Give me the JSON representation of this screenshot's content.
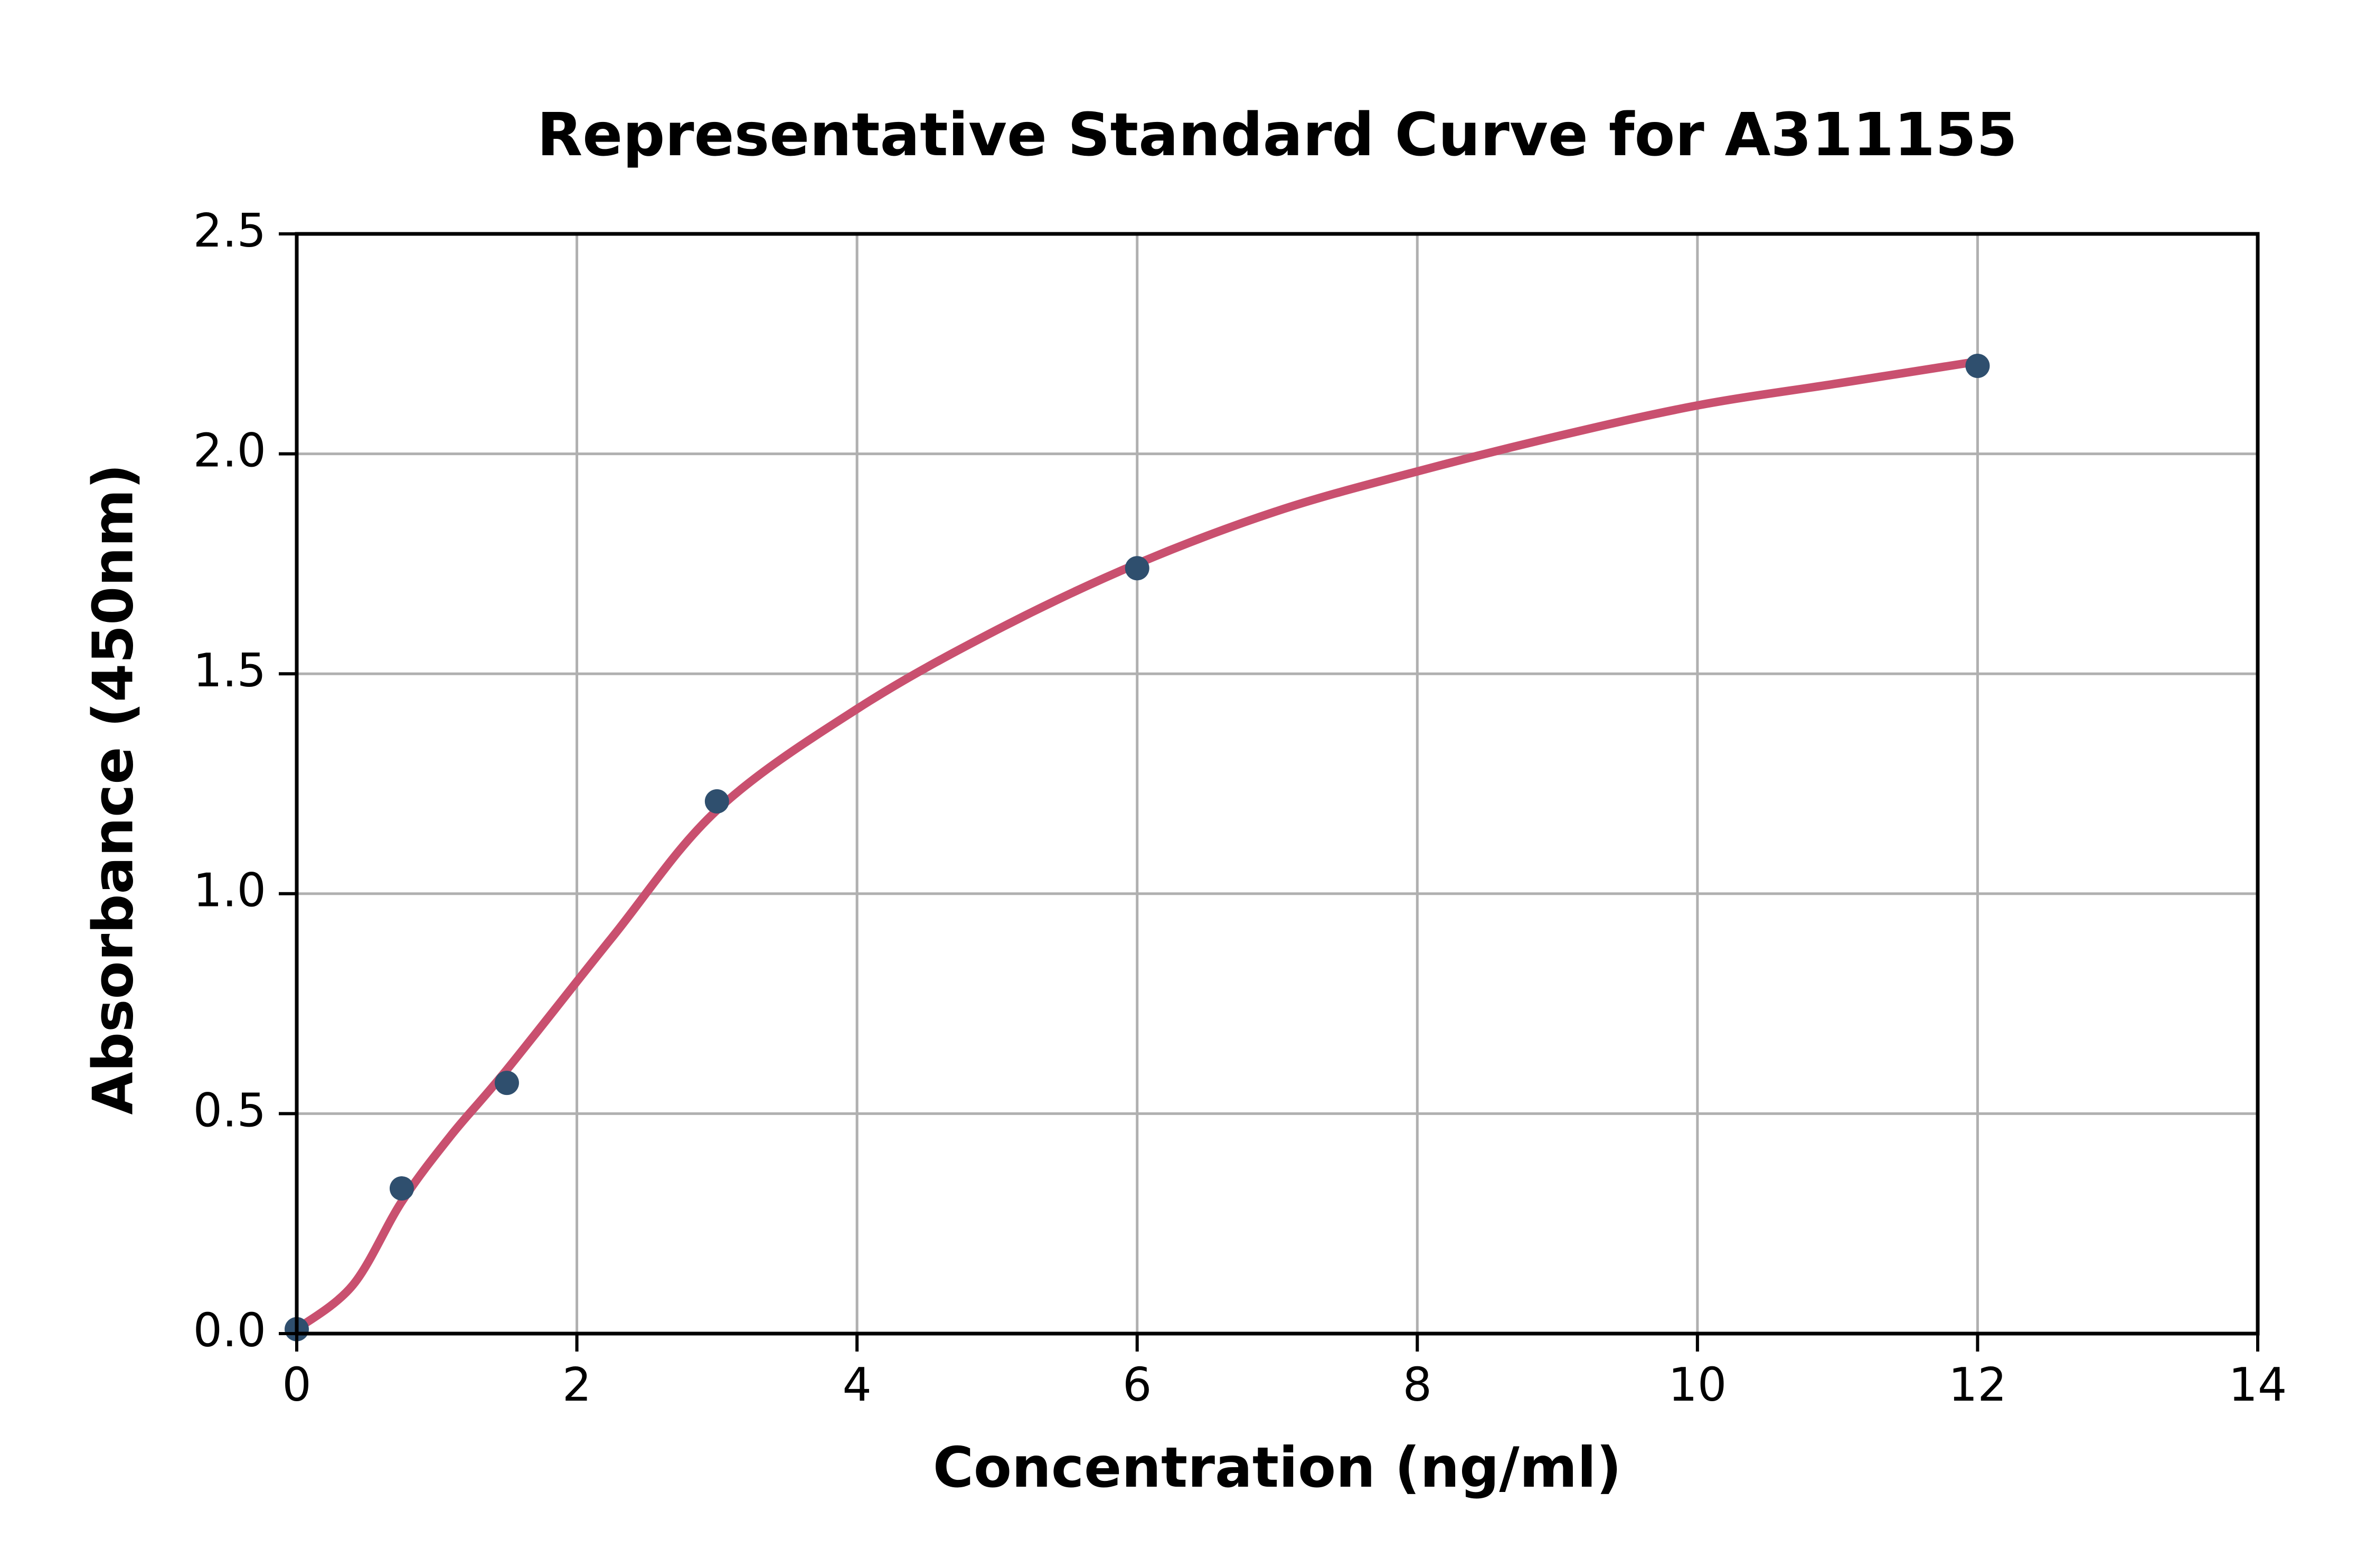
{
  "chart_data": {
    "type": "scatter",
    "title": "Representative Standard Curve for A311155",
    "xlabel": "Concentration (ng/ml)",
    "ylabel": "Absorbance (450nm)",
    "xlim": [
      0,
      14
    ],
    "ylim": [
      0,
      2.5
    ],
    "grid": true,
    "legend": "none",
    "x_ticks": {
      "values": [
        0,
        2,
        4,
        6,
        8,
        10,
        12,
        14
      ],
      "labels": [
        "0",
        "2",
        "4",
        "6",
        "8",
        "10",
        "12",
        "14"
      ]
    },
    "y_ticks": {
      "values": [
        0,
        0.5,
        1.0,
        1.5,
        2.0,
        2.5
      ],
      "labels": [
        "0.0",
        "0.5",
        "1.0",
        "1.5",
        "2.0",
        "2.5"
      ]
    },
    "points": [
      [
        0,
        0.01
      ],
      [
        0.75,
        0.33
      ],
      [
        1.5,
        0.57
      ],
      [
        3,
        1.21
      ],
      [
        6,
        1.74
      ],
      [
        12,
        2.2
      ]
    ],
    "fit_curve": [
      [
        0,
        0.01
      ],
      [
        0.4,
        0.11
      ],
      [
        0.75,
        0.3
      ],
      [
        1.1,
        0.45
      ],
      [
        1.5,
        0.6
      ],
      [
        2.25,
        0.9
      ],
      [
        3,
        1.19
      ],
      [
        4,
        1.42
      ],
      [
        5,
        1.6
      ],
      [
        6,
        1.75
      ],
      [
        7,
        1.87
      ],
      [
        8,
        1.96
      ],
      [
        9,
        2.04
      ],
      [
        10,
        2.11
      ],
      [
        11,
        2.16
      ],
      [
        12,
        2.21
      ]
    ],
    "colors": {
      "curve": "#c9506f",
      "points": "#2f4f6e",
      "grid": "#b0b0b0",
      "axis": "#000000",
      "background": "#ffffff"
    }
  }
}
